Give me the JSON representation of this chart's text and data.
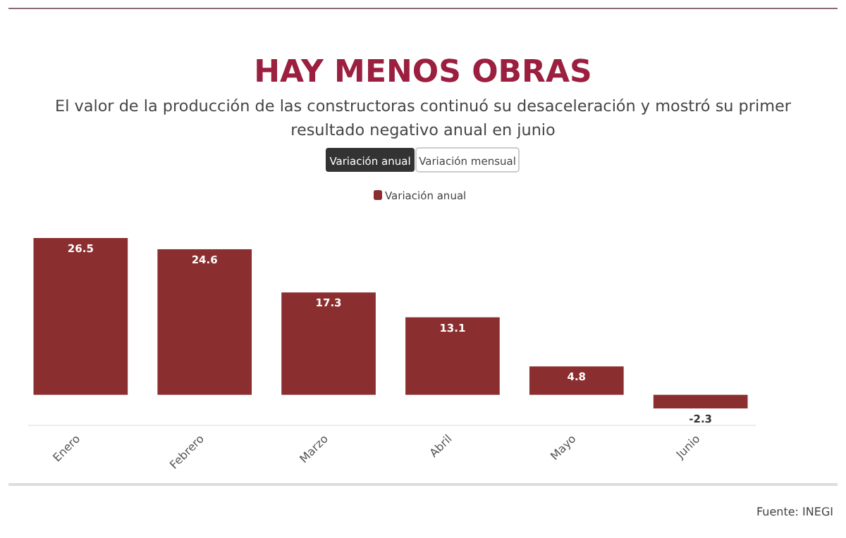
{
  "chart_data": {
    "type": "bar",
    "title": "HAY MENOS OBRAS",
    "subtitle": "El valor de la producción de las constructoras continuó su desaceleración y mostró su primer resultado negativo anual en junio",
    "categories": [
      "Enero",
      "Febrero",
      "Marzo",
      "Abril",
      "Mayo",
      "Junio"
    ],
    "series": [
      {
        "name": "Variación anual",
        "color": "#8b2e2f",
        "values": [
          26.5,
          24.6,
          17.3,
          13.1,
          4.8,
          -2.3
        ]
      }
    ],
    "data_labels": true,
    "legend": "top",
    "annotations": [
      "Variación anual",
      "Variación mensual",
      "Fuente: INEGI"
    ]
  }
}
